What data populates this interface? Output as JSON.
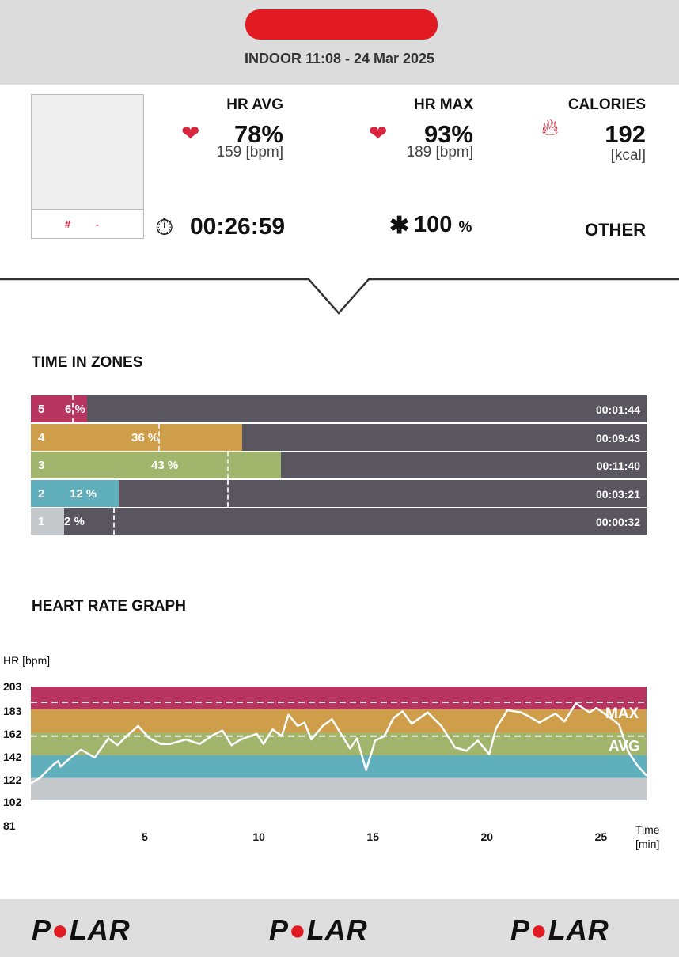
{
  "header": {
    "subtitle": "INDOOR 11:08 - 24 Mar 2025"
  },
  "profile": {
    "caption": "# -"
  },
  "stats": {
    "hr_avg": {
      "label": "HR AVG",
      "value": "78",
      "unit_pct": "%",
      "bpm": "159 [bpm]"
    },
    "hr_max": {
      "label": "HR MAX",
      "value": "93",
      "unit_pct": "%",
      "bpm": "189 [bpm]"
    },
    "calories": {
      "label": "CALORIES",
      "value": "192",
      "unit": "[kcal]"
    },
    "duration": "00:26:59",
    "battery": {
      "value": "100",
      "unit": "%"
    },
    "sport": "OTHER"
  },
  "zones_title": "TIME IN ZONES",
  "zones": [
    {
      "zone": "5",
      "pct": "6 %",
      "time": "00:01:44",
      "color": "#b83562"
    },
    {
      "zone": "4",
      "pct": "36 %",
      "time": "00:09:43",
      "color": "#cf9e4a"
    },
    {
      "zone": "3",
      "pct": "43 %",
      "time": "00:11:40",
      "color": "#a2b56c"
    },
    {
      "zone": "2",
      "pct": "12 %",
      "time": "00:03:21",
      "color": "#5fafbd"
    },
    {
      "zone": "1",
      "pct": "2 %",
      "time": "00:00:32",
      "color": "#c6c9cb"
    }
  ],
  "graph_title": "HEART RATE GRAPH",
  "chart_data": {
    "type": "line",
    "ylabel": "HR [bpm]",
    "xlabel": "Time [min]",
    "yticks": [
      203,
      183,
      162,
      142,
      122,
      102,
      81
    ],
    "xticks": [
      5,
      10,
      15,
      20,
      25
    ],
    "xlim": [
      0,
      27
    ],
    "ylim": [
      81,
      203
    ],
    "zones": [
      [
        183,
        203,
        "#b83562"
      ],
      [
        162,
        183,
        "#cf9e4a"
      ],
      [
        142,
        162,
        "#a2b56c"
      ],
      [
        122,
        142,
        "#5fafbd"
      ],
      [
        102,
        122,
        "#c6c9cb"
      ]
    ],
    "max_line": 189,
    "avg_line": 159,
    "max_label": "MAX",
    "avg_label": "AVG",
    "x": [
      0,
      0.4,
      1,
      1.2,
      1.3,
      1.75,
      2.2,
      2.8,
      3.4,
      3.8,
      4.2,
      4.7,
      5.2,
      5.7,
      6.1,
      6.8,
      7.4,
      8,
      8.4,
      8.8,
      9.2,
      9.9,
      10.2,
      10.6,
      11,
      11.3,
      11.7,
      12,
      12.3,
      12.8,
      13.2,
      13.6,
      14,
      14.3,
      14.7,
      15.1,
      15.5,
      15.9,
      16.3,
      16.7,
      17.4,
      18,
      18.6,
      19.1,
      19.6,
      20.1,
      20.4,
      20.9,
      21.5,
      21.8,
      22.3,
      23,
      23.4,
      23.9,
      24.5,
      24.8,
      25.5,
      25.8,
      26.2,
      26.6,
      27
    ],
    "y": [
      117,
      122,
      134,
      137,
      132,
      140,
      147,
      140,
      157,
      151,
      159,
      168,
      157,
      152,
      152,
      156,
      152,
      160,
      164,
      151,
      156,
      161,
      152,
      165,
      159,
      178,
      168,
      171,
      156,
      168,
      174,
      161,
      148,
      157,
      129,
      155,
      159,
      175,
      181,
      170,
      180,
      168,
      149,
      146,
      155,
      143,
      166,
      182,
      180,
      177,
      171,
      179,
      172,
      188,
      180,
      184,
      174,
      169,
      145,
      133,
      124
    ]
  },
  "footer": {
    "logos": [
      "POLAR",
      "POLAR",
      "POLAR"
    ]
  }
}
